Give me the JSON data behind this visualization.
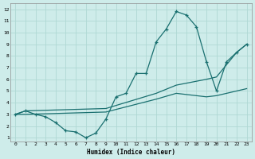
{
  "xlabel": "Humidex (Indice chaleur)",
  "background_color": "#ceecea",
  "grid_color": "#afd8d4",
  "line_color": "#1a7070",
  "xlim": [
    -0.5,
    23.5
  ],
  "ylim": [
    0.7,
    12.5
  ],
  "xticks": [
    0,
    1,
    2,
    3,
    4,
    5,
    6,
    7,
    8,
    9,
    10,
    11,
    12,
    13,
    14,
    15,
    16,
    17,
    18,
    19,
    20,
    21,
    22,
    23
  ],
  "yticks": [
    1,
    2,
    3,
    4,
    5,
    6,
    7,
    8,
    9,
    10,
    11,
    12
  ],
  "series1_x": [
    0,
    1,
    2,
    3,
    4,
    5,
    6,
    7,
    8,
    9,
    10,
    11,
    12,
    13,
    14,
    15,
    16,
    17,
    18,
    19,
    20,
    21,
    22,
    23
  ],
  "series1_y": [
    3.0,
    3.3,
    3.0,
    2.8,
    2.3,
    1.6,
    1.5,
    1.0,
    1.4,
    2.6,
    4.5,
    4.8,
    6.5,
    6.5,
    9.2,
    10.3,
    11.8,
    11.5,
    10.5,
    7.5,
    5.0,
    7.5,
    8.3,
    9.0
  ],
  "series2_x": [
    0,
    1,
    9,
    14,
    16,
    19,
    20,
    22,
    23
  ],
  "series2_y": [
    3.0,
    3.3,
    3.5,
    4.8,
    5.5,
    6.0,
    6.2,
    8.3,
    9.0
  ],
  "series3_x": [
    0,
    1,
    9,
    14,
    16,
    19,
    20,
    22,
    23
  ],
  "series3_y": [
    3.0,
    3.0,
    3.2,
    4.3,
    4.8,
    4.5,
    4.6,
    5.0,
    5.2
  ]
}
